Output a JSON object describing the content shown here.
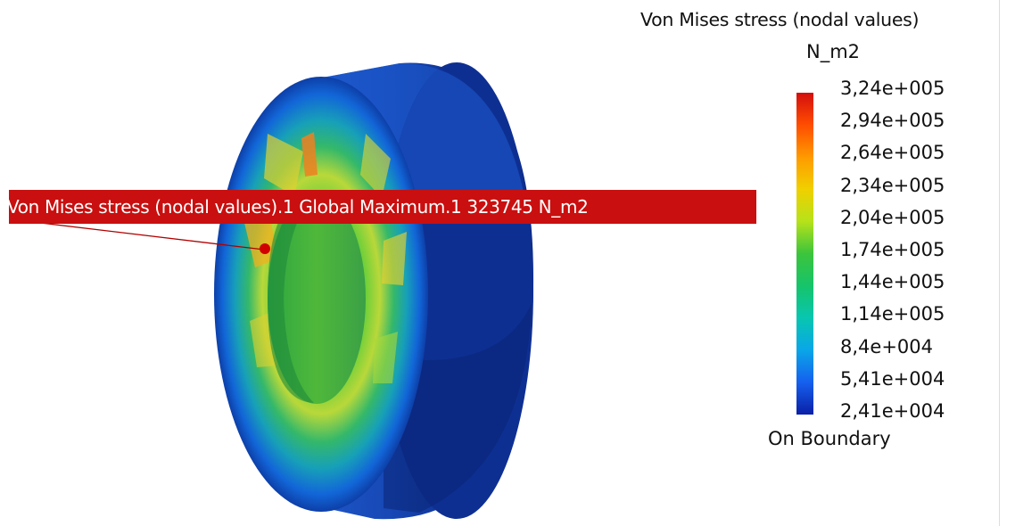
{
  "legend": {
    "title": "Von Mises stress (nodal values)",
    "unit": "N_m2",
    "values": [
      "3,24e+005",
      "2,94e+005",
      "2,64e+005",
      "2,34e+005",
      "2,04e+005",
      "1,74e+005",
      "1,44e+005",
      "1,14e+005",
      "8,4e+004",
      "5,41e+004",
      "2,41e+004"
    ],
    "footer": "On Boundary",
    "colors": [
      "#d40e0e",
      "#ff4d00",
      "#ff9a00",
      "#f0d000",
      "#b6e21a",
      "#3cc43c",
      "#16c46a",
      "#08c6b0",
      "#0aa6e8",
      "#1560ee",
      "#0a1fa6"
    ]
  },
  "annotation": {
    "text": "Von Mises stress (nodal values).1  Global Maximum.1  323745 N_m2",
    "color": "#c90f0f"
  }
}
